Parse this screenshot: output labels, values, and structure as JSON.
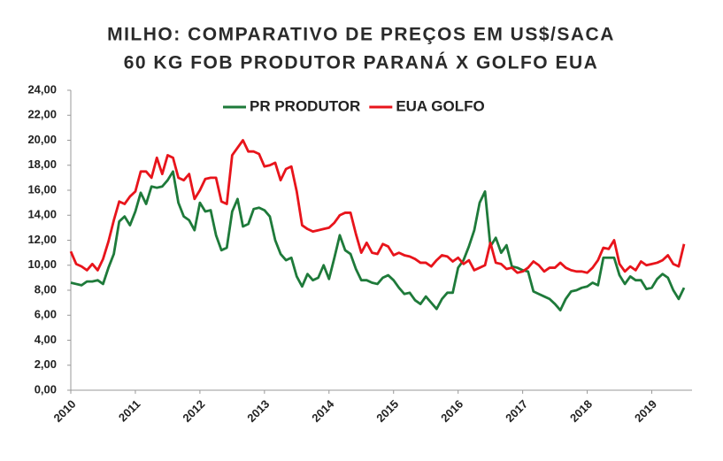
{
  "chart_data": {
    "type": "line",
    "title": [
      "MILHO: COMPARATIVO DE PREÇOS EM US$/SACA",
      "60 KG FOB PRODUTOR PARANÁ X GOLFO EUA"
    ],
    "categories": [
      "2010",
      null,
      null,
      null,
      null,
      null,
      null,
      null,
      null,
      null,
      null,
      null,
      "2011",
      null,
      null,
      null,
      null,
      null,
      null,
      null,
      null,
      null,
      null,
      null,
      "2012",
      null,
      null,
      null,
      null,
      null,
      null,
      null,
      null,
      null,
      null,
      null,
      "2013",
      null,
      null,
      null,
      null,
      null,
      null,
      null,
      null,
      null,
      null,
      null,
      "2014",
      null,
      null,
      null,
      null,
      null,
      null,
      null,
      null,
      null,
      null,
      null,
      "2015",
      null,
      null,
      null,
      null,
      null,
      null,
      null,
      null,
      null,
      null,
      null,
      "2016",
      null,
      null,
      null,
      null,
      null,
      null,
      null,
      null,
      null,
      null,
      null,
      "2017",
      null,
      null,
      null,
      null,
      null,
      null,
      null,
      null,
      null,
      null,
      null,
      "2018",
      null,
      null,
      null,
      null,
      null,
      null,
      null,
      null,
      null,
      null,
      null,
      "2019",
      null,
      null,
      null,
      null,
      null,
      null
    ],
    "series": [
      {
        "name": "PR PRODUTOR",
        "color": "#1e7a3a",
        "values": [
          8.6,
          8.5,
          8.4,
          8.7,
          8.7,
          8.8,
          8.5,
          9.8,
          10.9,
          13.5,
          13.9,
          13.2,
          14.3,
          15.8,
          14.9,
          16.3,
          16.2,
          16.3,
          16.8,
          17.5,
          15.0,
          13.9,
          13.6,
          12.8,
          15.0,
          14.3,
          14.4,
          12.4,
          11.2,
          11.4,
          14.3,
          15.3,
          13.1,
          13.3,
          14.5,
          14.6,
          14.4,
          13.9,
          12.0,
          10.9,
          10.4,
          10.6,
          9.1,
          8.3,
          9.3,
          8.8,
          9.0,
          10.0,
          8.9,
          10.6,
          12.4,
          11.2,
          10.9,
          9.7,
          8.8,
          8.8,
          8.6,
          8.5,
          9.0,
          9.2,
          8.8,
          8.2,
          7.7,
          7.8,
          7.2,
          6.9,
          7.5,
          7.0,
          6.5,
          7.3,
          7.8,
          7.8,
          9.8,
          10.4,
          11.5,
          12.8,
          15.0,
          15.9,
          11.5,
          12.2,
          11.0,
          11.6,
          9.9,
          9.8,
          9.6,
          9.5,
          7.9,
          7.7,
          7.5,
          7.3,
          6.9,
          6.4,
          7.3,
          7.9,
          8.0,
          8.2,
          8.3,
          8.6,
          8.4,
          10.6,
          10.6,
          10.6,
          9.2,
          8.5,
          9.1,
          8.8,
          8.8,
          8.1,
          8.2,
          8.9,
          9.3,
          9.0,
          8.0,
          7.3,
          8.2
        ]
      },
      {
        "name": "EUA GOLFO",
        "color": "#e8141b",
        "values": [
          11.1,
          10.1,
          9.9,
          9.6,
          10.1,
          9.6,
          10.5,
          11.9,
          13.6,
          15.1,
          14.9,
          15.5,
          15.9,
          17.5,
          17.5,
          17.0,
          18.6,
          17.3,
          18.8,
          18.6,
          17.0,
          16.8,
          17.3,
          15.3,
          16.0,
          16.9,
          17.0,
          17.0,
          15.1,
          14.9,
          18.8,
          19.4,
          20.0,
          19.1,
          19.1,
          18.9,
          17.9,
          18.0,
          18.2,
          16.8,
          17.7,
          17.9,
          15.9,
          13.2,
          12.9,
          12.7,
          12.8,
          12.9,
          13.0,
          13.4,
          14.0,
          14.2,
          14.2,
          12.5,
          11.0,
          11.8,
          11.0,
          10.9,
          11.7,
          11.5,
          10.8,
          11.0,
          10.8,
          10.7,
          10.5,
          10.2,
          10.2,
          9.9,
          10.4,
          10.8,
          10.7,
          10.3,
          10.6,
          10.1,
          10.4,
          9.6,
          9.8,
          10.0,
          11.8,
          10.2,
          10.1,
          9.7,
          9.8,
          9.4,
          9.5,
          9.8,
          10.3,
          10.0,
          9.5,
          9.8,
          9.8,
          10.2,
          9.8,
          9.6,
          9.5,
          9.5,
          9.4,
          9.8,
          10.4,
          11.4,
          11.3,
          12.0,
          10.1,
          9.5,
          9.9,
          9.6,
          10.3,
          10.0,
          10.1,
          10.2,
          10.4,
          10.8,
          10.1,
          9.9,
          11.7
        ]
      }
    ],
    "ylim": [
      0,
      24
    ],
    "yticks": [
      {
        "value": 0,
        "label": "0,00"
      },
      {
        "value": 2,
        "label": "2,00"
      },
      {
        "value": 4,
        "label": "4,00"
      },
      {
        "value": 6,
        "label": "6,00"
      },
      {
        "value": 8,
        "label": "8,00"
      },
      {
        "value": 10,
        "label": "10,00"
      },
      {
        "value": 12,
        "label": "12,00"
      },
      {
        "value": 14,
        "label": "14,00"
      },
      {
        "value": 16,
        "label": "16,00"
      },
      {
        "value": 18,
        "label": "18,00"
      },
      {
        "value": 20,
        "label": "20,00"
      },
      {
        "value": 22,
        "label": "22,00"
      },
      {
        "value": 24,
        "label": "24,00"
      }
    ],
    "grid": false,
    "legend": "top"
  }
}
